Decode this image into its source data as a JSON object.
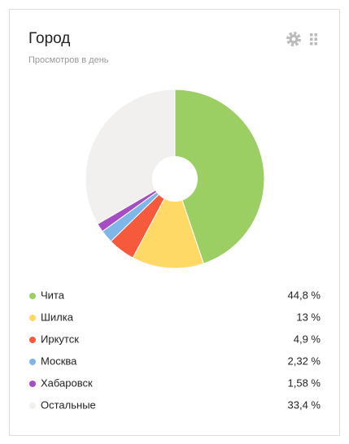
{
  "chart_data": {
    "type": "pie",
    "title": "Город",
    "subtitle": "Просмотров в день",
    "categories": [
      "Чита",
      "Шилка",
      "Иркутск",
      "Москва",
      "Хабаровск",
      "Остальные"
    ],
    "values": [
      44.8,
      13,
      4.9,
      2.32,
      1.58,
      33.4
    ],
    "value_labels": [
      "44,8 %",
      "13 %",
      "4,9 %",
      "2,32 %",
      "1,58 %",
      "33,4 %"
    ],
    "colors": [
      "#9ccf63",
      "#ffd966",
      "#f55a3c",
      "#7fb6ea",
      "#a64dc3",
      "#f1f0ee"
    ]
  }
}
